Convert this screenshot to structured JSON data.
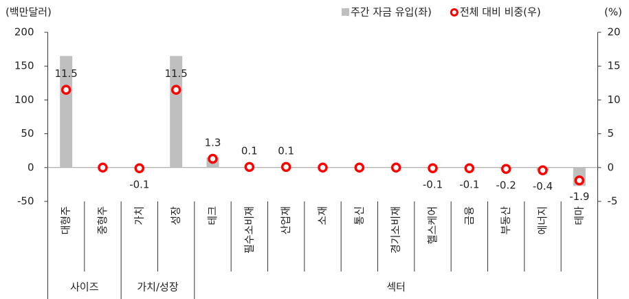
{
  "chart_data": {
    "type": "bar",
    "y_axis_label": "(백만달러)",
    "y2_axis_label": "(%)",
    "categories": [
      "대형주",
      "중형주",
      "가치",
      "성장",
      "테크",
      "필수소비재",
      "산업재",
      "소재",
      "통신",
      "경기소비재",
      "헬스케어",
      "금융",
      "부동산",
      "에너지",
      "테마"
    ],
    "category_groups": [
      "사이즈",
      "사이즈",
      "가치/성장",
      "가치/성장",
      "섹터",
      "섹터",
      "섹터",
      "섹터",
      "섹터",
      "섹터",
      "섹터",
      "섹터",
      "섹터",
      "섹터",
      "섹터"
    ],
    "series": [
      {
        "name": "주간 자금 유입(좌)",
        "type": "bar",
        "color": "#bfbfbf",
        "axis": "y",
        "values": [
          165,
          0,
          -1,
          165,
          15,
          1,
          1,
          0,
          0,
          0,
          -1,
          -1,
          -2,
          -4,
          -27
        ]
      },
      {
        "name": "전체 대비 비중(우)",
        "type": "scatter",
        "color": "#ff0000",
        "axis": "y2",
        "values": [
          11.5,
          0,
          -0.1,
          11.5,
          1.3,
          0.1,
          0.1,
          0,
          0,
          0,
          -0.1,
          -0.1,
          -0.2,
          -0.4,
          -1.9
        ],
        "value_labels": [
          "11.5",
          null,
          "-0.1",
          "11.5",
          "1.3",
          "0.1",
          "0.1",
          null,
          null,
          null,
          "-0.1",
          "-0.1",
          "-0.2",
          "-0.4",
          "-1.9"
        ]
      }
    ],
    "ylim": [
      -50,
      200
    ],
    "yticks": [
      -50,
      0,
      50,
      100,
      150,
      200
    ],
    "y2lim": [
      -5,
      20
    ],
    "y2ticks": [
      -5,
      0,
      5,
      10,
      15,
      20
    ],
    "legend": "top-right"
  }
}
